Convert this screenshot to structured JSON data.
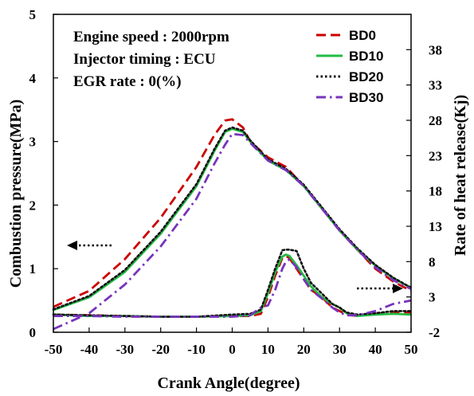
{
  "chart_data": {
    "type": "line",
    "xlabel": "Crank Angle(degree)",
    "ylabel_left": "Combustion pressure(MPa)",
    "ylabel_right": "Rate of heat release(Kj)",
    "xlim": [
      -50,
      50
    ],
    "ylim_left": [
      0,
      5
    ],
    "ylim_right": [
      -2,
      43
    ],
    "x_ticks": [
      -50,
      -40,
      -30,
      -20,
      -10,
      0,
      10,
      20,
      30,
      40,
      50
    ],
    "y_left_ticks": [
      0,
      1,
      2,
      3,
      4,
      5
    ],
    "y_right_ticks": [
      -2,
      3,
      8,
      13,
      18,
      23,
      28,
      33,
      38
    ],
    "grid": false,
    "legend_position": "top-right",
    "annotations": [
      "Engine speed : 2000rpm",
      "Injector timing : ECU",
      "EGR rate : 0(%)"
    ],
    "series": [
      {
        "name": "BD0",
        "color": "#cc0000",
        "dash": "dashed",
        "axis": "left",
        "x": [
          -50,
          -40,
          -30,
          -20,
          -10,
          -5,
          -2,
          0,
          3,
          5,
          10,
          15,
          20,
          25,
          30,
          35,
          40,
          45,
          50
        ],
        "values": [
          0.4,
          0.65,
          1.15,
          1.8,
          2.6,
          3.1,
          3.33,
          3.35,
          3.22,
          3.0,
          2.75,
          2.6,
          2.3,
          1.95,
          1.6,
          1.3,
          1.0,
          0.8,
          0.65
        ]
      },
      {
        "name": "BD10",
        "color": "#22bb44",
        "dash": "solid",
        "axis": "left",
        "x": [
          -50,
          -40,
          -30,
          -20,
          -10,
          -5,
          -2,
          0,
          3,
          5,
          10,
          15,
          20,
          25,
          30,
          35,
          40,
          45,
          50
        ],
        "values": [
          0.35,
          0.55,
          0.95,
          1.55,
          2.3,
          2.85,
          3.15,
          3.2,
          3.15,
          3.0,
          2.7,
          2.55,
          2.3,
          1.95,
          1.6,
          1.3,
          1.05,
          0.85,
          0.7
        ]
      },
      {
        "name": "BD20",
        "color": "#111111",
        "dash": "dotted",
        "axis": "left",
        "x": [
          -50,
          -40,
          -30,
          -20,
          -10,
          -5,
          -2,
          0,
          3,
          5,
          10,
          15,
          20,
          25,
          30,
          35,
          40,
          45,
          50
        ],
        "values": [
          0.36,
          0.57,
          0.98,
          1.58,
          2.33,
          2.88,
          3.17,
          3.22,
          3.17,
          3.02,
          2.72,
          2.57,
          2.32,
          1.97,
          1.62,
          1.32,
          1.06,
          0.86,
          0.7
        ]
      },
      {
        "name": "BD30",
        "color": "#7733bb",
        "dash": "dashdot",
        "axis": "left",
        "x": [
          -50,
          -40,
          -30,
          -20,
          -10,
          -5,
          -2,
          0,
          3,
          5,
          10,
          15,
          20,
          25,
          30,
          35,
          40,
          45,
          50
        ],
        "values": [
          0.05,
          0.3,
          0.75,
          1.35,
          2.1,
          2.65,
          2.95,
          3.12,
          3.1,
          2.98,
          2.7,
          2.55,
          2.3,
          1.95,
          1.6,
          1.3,
          1.02,
          0.82,
          0.68
        ]
      },
      {
        "name": "BD0",
        "color": "#cc0000",
        "dash": "dashed",
        "axis": "right",
        "x": [
          -50,
          -40,
          -30,
          -20,
          -10,
          0,
          5,
          8,
          10,
          12,
          14,
          15,
          16,
          18,
          20,
          22,
          25,
          28,
          30,
          32,
          35,
          40,
          45,
          50
        ],
        "values": [
          0.5,
          0.4,
          0.3,
          0.2,
          0.2,
          0.3,
          0.3,
          0.6,
          3.0,
          6.0,
          8.5,
          8.8,
          8.5,
          7.0,
          5.5,
          4.0,
          3.0,
          1.5,
          1.0,
          0.5,
          0.3,
          0.6,
          0.8,
          0.8
        ]
      },
      {
        "name": "BD10",
        "color": "#22bb44",
        "dash": "solid",
        "axis": "right",
        "x": [
          -50,
          -40,
          -30,
          -20,
          -10,
          0,
          5,
          8,
          10,
          12,
          14,
          15,
          16,
          18,
          20,
          22,
          25,
          28,
          30,
          32,
          35,
          40,
          45,
          50
        ],
        "values": [
          0.5,
          0.3,
          0.3,
          0.2,
          0.2,
          0.3,
          0.4,
          1.0,
          3.5,
          6.5,
          8.7,
          9.0,
          8.8,
          7.5,
          6.0,
          4.5,
          3.0,
          2.0,
          1.5,
          0.7,
          0.3,
          0.5,
          0.6,
          0.5
        ]
      },
      {
        "name": "BD20",
        "color": "#111111",
        "dash": "dotted",
        "axis": "right",
        "x": [
          -50,
          -40,
          -30,
          -20,
          -10,
          0,
          5,
          8,
          10,
          12,
          14,
          15,
          16,
          18,
          20,
          22,
          25,
          28,
          30,
          32,
          35,
          40,
          45,
          50
        ],
        "values": [
          0.5,
          0.4,
          0.3,
          0.2,
          0.2,
          0.5,
          0.6,
          1.2,
          4.0,
          7.0,
          9.6,
          9.7,
          9.7,
          9.5,
          7.0,
          5.0,
          3.5,
          2.0,
          1.5,
          0.8,
          0.5,
          0.7,
          1.0,
          1.0
        ]
      },
      {
        "name": "BD30",
        "color": "#7733bb",
        "dash": "dashdot",
        "axis": "right",
        "x": [
          -50,
          -40,
          -30,
          -20,
          -10,
          0,
          5,
          8,
          10,
          12,
          14,
          15,
          16,
          18,
          20,
          22,
          25,
          28,
          30,
          32,
          35,
          40,
          45,
          50
        ],
        "values": [
          0.3,
          0.3,
          0.2,
          0.2,
          0.2,
          0.2,
          0.4,
          1.5,
          1.8,
          4.0,
          7.0,
          8.0,
          8.3,
          7.2,
          5.5,
          4.0,
          2.8,
          1.5,
          0.8,
          0.4,
          0.4,
          1.0,
          2.0,
          2.5
        ]
      }
    ]
  }
}
